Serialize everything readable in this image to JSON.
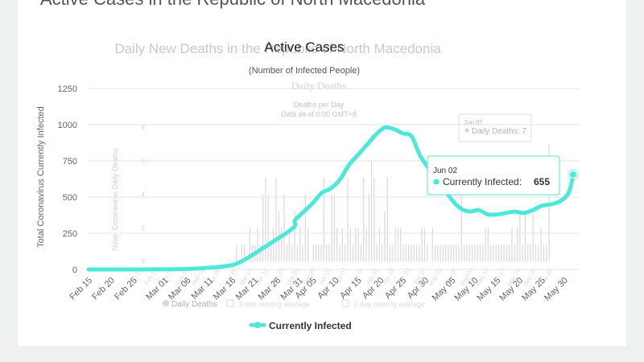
{
  "page": {
    "heading": "Active Cases in the Republic of North Macedonia"
  },
  "ghost": {
    "deaths_title": "Daily New Deaths in the Republic of North Macedonia",
    "daily_deaths_title": "Daily Deaths",
    "deaths_per_day": "Deaths per Day",
    "data_as_of": "Data as of 0:00 GMT+8",
    "y_axis_label": "Novel Coronavirus Daily Deaths",
    "y_ticks": [
      "0",
      "2",
      "4",
      "6",
      "8"
    ],
    "x_ticks": [
      "Feb 15",
      "Feb 19",
      "Feb 23",
      "Feb 27",
      "Mar 02",
      "Mar 06",
      "Mar 10",
      "Mar 14",
      "Mar 18",
      "Mar 22",
      "Mar 26",
      "Mar 30",
      "Apr 03",
      "Apr 07",
      "Apr 11",
      "Apr 15",
      "Apr 19",
      "Apr 23",
      "Apr 27",
      "May 01",
      "May 05",
      "May 09",
      "May 13",
      "May 17",
      "May 21",
      "May 25",
      "May 29"
    ],
    "legend": [
      "Daily Deaths",
      "3-day moving average",
      "7-day moving average"
    ],
    "tooltip_date": "Jun 01",
    "tooltip_label": "Daily Deaths: 7",
    "bars": [
      0,
      0,
      0,
      0,
      0,
      0,
      0,
      0,
      0,
      0,
      0,
      0,
      0,
      0,
      0,
      0,
      0,
      0,
      0,
      0,
      0,
      0,
      0,
      0,
      0,
      0,
      0,
      0,
      0,
      0,
      0,
      0,
      0,
      0,
      0,
      0,
      0,
      1,
      0,
      1,
      1,
      0,
      2,
      1,
      1,
      2,
      1,
      4,
      5,
      4,
      1,
      2,
      5,
      3,
      2,
      4,
      1,
      2,
      1,
      3,
      1,
      2,
      1,
      4,
      2,
      0,
      1,
      1,
      1,
      1,
      5,
      1,
      1,
      4,
      4,
      2,
      1,
      2,
      1,
      5,
      2,
      1,
      2,
      2,
      1,
      5,
      2,
      4,
      6,
      5,
      1,
      2,
      1,
      3,
      5,
      1,
      1,
      2,
      2,
      2,
      1,
      1,
      1,
      1,
      1,
      1,
      1,
      2,
      2,
      1,
      0,
      2,
      1,
      1,
      1,
      1,
      1,
      1,
      1,
      1,
      1,
      1,
      4,
      1,
      1,
      1,
      1,
      1,
      1,
      1,
      1,
      2,
      2,
      1,
      1,
      1,
      1,
      1,
      1,
      1,
      1,
      2,
      1,
      2,
      3,
      1,
      3,
      1,
      1,
      3,
      1,
      1,
      2,
      1,
      1,
      7
    ]
  },
  "chart_data": {
    "type": "line",
    "title": "Active Cases",
    "subtitle": "(Number of Infected People)",
    "ylabel": "Total Coronavirus Currently Infected",
    "xlabel": "",
    "ylim": [
      0,
      1250
    ],
    "y_ticks": [
      "0",
      "250",
      "500",
      "750",
      "1000",
      "1250"
    ],
    "x_ticks": [
      "Feb 15",
      "Feb 20",
      "Feb 25",
      "Mar 01",
      "Mar 06",
      "Mar 11",
      "Mar 16",
      "Mar 21",
      "Mar 26",
      "Mar 31",
      "Apr 05",
      "Apr 10",
      "Apr 15",
      "Apr 20",
      "Apr 25",
      "Apr 30",
      "May 05",
      "May 10",
      "May 15",
      "May 20",
      "May 25",
      "May 30"
    ],
    "grid": true,
    "legend_position": "bottom",
    "series": [
      {
        "name": "Currently Infected",
        "color": "#4ee8d9",
        "x": [
          "Feb 15",
          "Feb 18",
          "Feb 21",
          "Feb 24",
          "Feb 27",
          "Mar 01",
          "Mar 04",
          "Mar 07",
          "Mar 10",
          "Mar 13",
          "Mar 16",
          "Mar 18",
          "Mar 20",
          "Mar 22",
          "Mar 24",
          "Mar 26",
          "Mar 28",
          "Mar 30",
          "Apr 01",
          "Apr 03",
          "Apr 05",
          "Apr 07",
          "Apr 09",
          "Apr 11",
          "Apr 13",
          "Apr 15",
          "Apr 17",
          "Apr 19",
          "Apr 21",
          "Apr 23",
          "Apr 25",
          "Apr 27",
          "Apr 29",
          "May 01",
          "May 03",
          "May 05",
          "May 07",
          "May 09",
          "May 11",
          "May 13",
          "May 15",
          "May 17",
          "May 19",
          "May 21",
          "May 23",
          "May 25",
          "May 27",
          "May 29",
          "May 31",
          "Jun 02"
        ],
        "values": [
          0,
          0,
          0,
          0,
          0,
          1,
          2,
          5,
          10,
          17,
          30,
          55,
          90,
          130,
          170,
          210,
          250,
          300,
          340,
          400,
          460,
          530,
          560,
          620,
          720,
          790,
          860,
          930,
          980,
          970,
          940,
          920,
          780,
          650,
          570,
          480,
          420,
          400,
          410,
          380,
          380,
          390,
          400,
          390,
          410,
          440,
          450,
          470,
          530,
          655
        ]
      }
    ],
    "tooltip": {
      "date": "Jun 02",
      "label": "Currently Infected:",
      "value": "655"
    }
  }
}
